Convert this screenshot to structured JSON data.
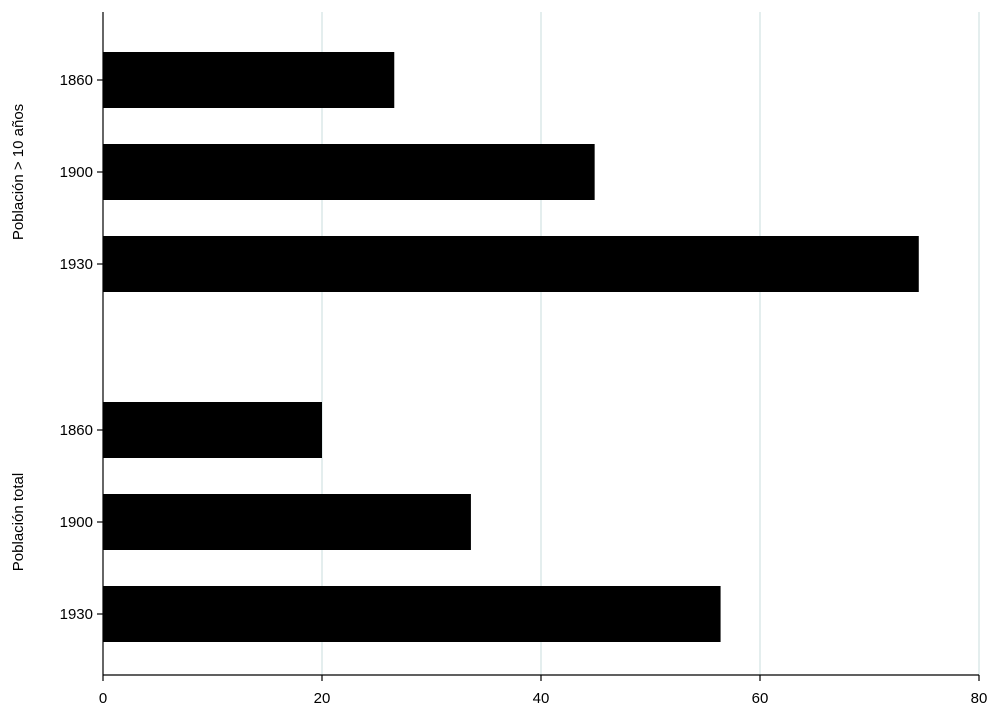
{
  "chart_data": {
    "type": "bar",
    "orientation": "horizontal",
    "title": "",
    "xlabel": "",
    "ylabel": "",
    "xlim": [
      0,
      80
    ],
    "x_ticks": [
      0,
      20,
      40,
      60,
      80
    ],
    "grid": "vertical",
    "colors": {
      "bar": "#000000",
      "grid": "#dce9e9",
      "axis": "#000000"
    },
    "groups": [
      {
        "label": "Población > 10 años",
        "bars": [
          {
            "category": "1860",
            "value": 26.6
          },
          {
            "category": "1900",
            "value": 44.9
          },
          {
            "category": "1930",
            "value": 74.5
          }
        ]
      },
      {
        "label": "Población total",
        "bars": [
          {
            "category": "1860",
            "value": 20.0
          },
          {
            "category": "1900",
            "value": 33.6
          },
          {
            "category": "1930",
            "value": 56.4
          }
        ]
      }
    ]
  }
}
